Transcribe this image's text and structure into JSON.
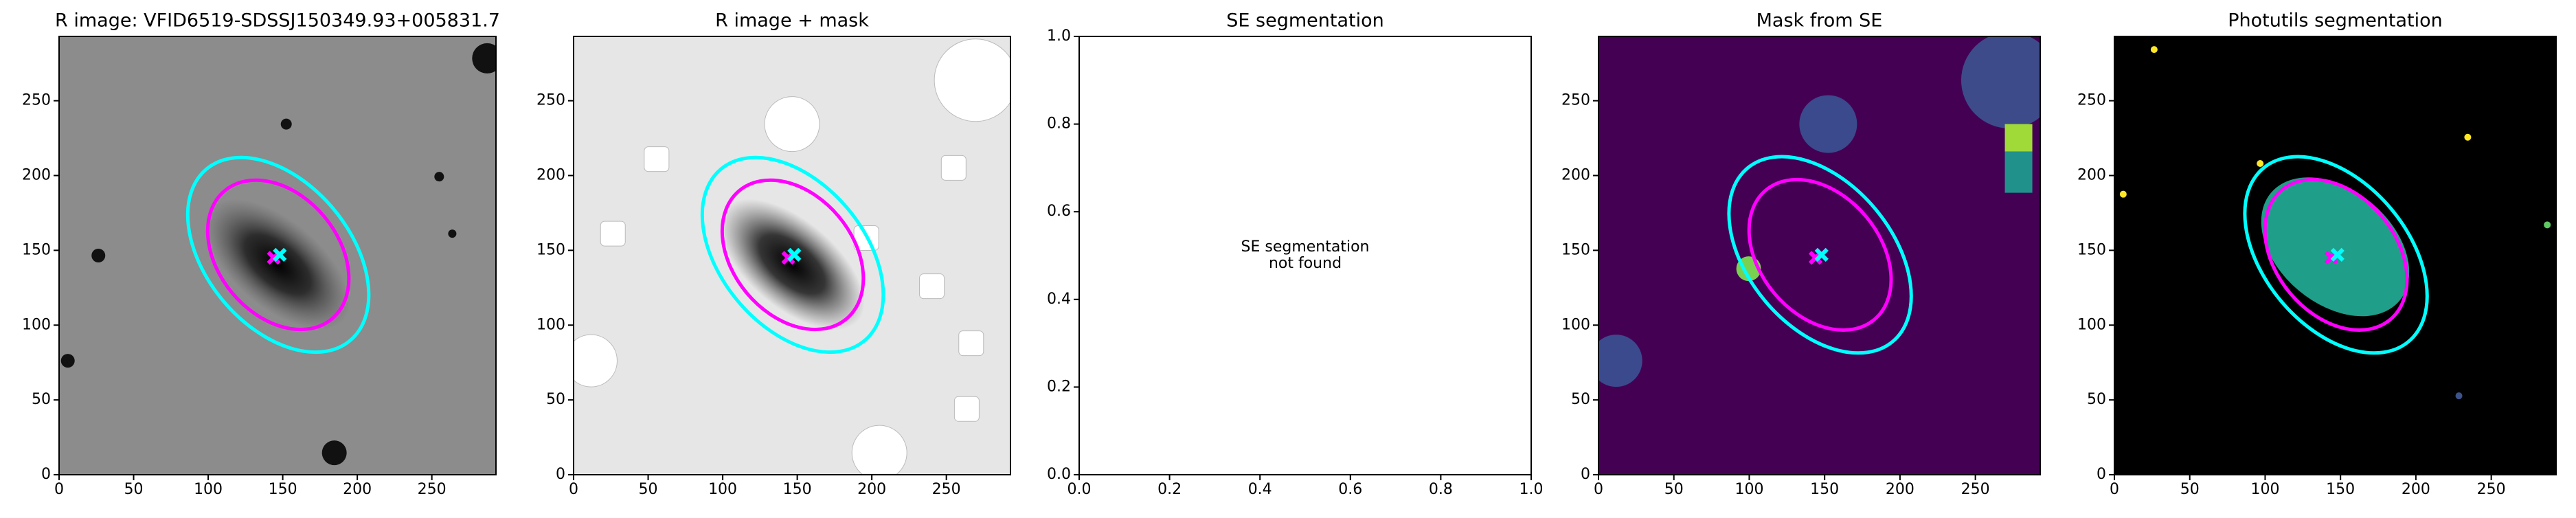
{
  "chart_data": [
    {
      "type": "image",
      "title": "R image: VFID6519-SDSSJ150349.93+005831.7",
      "background": "#8c8c8c",
      "xlim": [
        0,
        293
      ],
      "ylim": [
        0,
        293
      ],
      "xticks": [
        0,
        50,
        100,
        150,
        200,
        250
      ],
      "yticks": [
        0,
        50,
        100,
        150,
        200,
        250
      ],
      "ellipses": [
        {
          "x": 147,
          "y": 147,
          "width": 150,
          "height": 96,
          "angle": -50,
          "color": "#00ffff"
        },
        {
          "x": 147,
          "y": 147,
          "width": 112,
          "height": 80,
          "angle": -50,
          "color": "#ff00ff"
        }
      ],
      "markers": [
        {
          "x": 144,
          "y": 145,
          "color": "#ff00ff"
        },
        {
          "x": 148,
          "y": 147,
          "color": "#00ffff"
        }
      ]
    },
    {
      "type": "image",
      "title": "R image + mask",
      "background": "#e6e6e6",
      "xlim": [
        0,
        293
      ],
      "ylim": [
        0,
        293
      ],
      "xticks": [
        0,
        50,
        100,
        150,
        200,
        250
      ],
      "yticks": [
        0,
        50,
        100,
        150,
        200,
        250
      ],
      "ellipses": [
        {
          "x": 147,
          "y": 147,
          "width": 150,
          "height": 96,
          "angle": -50,
          "color": "#00ffff"
        },
        {
          "x": 147,
          "y": 147,
          "width": 112,
          "height": 80,
          "angle": -50,
          "color": "#ff00ff"
        }
      ],
      "markers": [
        {
          "x": 144,
          "y": 145,
          "color": "#ff00ff"
        },
        {
          "x": 148,
          "y": 147,
          "color": "#00ffff"
        }
      ]
    },
    {
      "type": "empty",
      "title": "SE segmentation",
      "background": "#ffffff",
      "xlim": [
        0,
        1
      ],
      "ylim": [
        0,
        1
      ],
      "xticks": [
        {
          "value": 0,
          "label": "0.0"
        },
        {
          "value": 0.2,
          "label": "0.2"
        },
        {
          "value": 0.4,
          "label": "0.4"
        },
        {
          "value": 0.6,
          "label": "0.6"
        },
        {
          "value": 0.8,
          "label": "0.8"
        },
        {
          "value": 1,
          "label": "1.0"
        }
      ],
      "yticks": [
        {
          "value": 0,
          "label": "0.0"
        },
        {
          "value": 0.2,
          "label": "0.2"
        },
        {
          "value": 0.4,
          "label": "0.4"
        },
        {
          "value": 0.6,
          "label": "0.6"
        },
        {
          "value": 0.8,
          "label": "0.8"
        },
        {
          "value": 1,
          "label": "1.0"
        }
      ],
      "annotation": [
        "SE segmentation",
        "not found"
      ]
    },
    {
      "type": "image",
      "title": "Mask from SE",
      "background": "#440154",
      "xlim": [
        0,
        293
      ],
      "ylim": [
        0,
        293
      ],
      "xticks": [
        0,
        50,
        100,
        150,
        200,
        250
      ],
      "yticks": [
        0,
        50,
        100,
        150,
        200,
        250
      ],
      "ellipses": [
        {
          "x": 147,
          "y": 147,
          "width": 150,
          "height": 96,
          "angle": -50,
          "color": "#00ffff"
        },
        {
          "x": 147,
          "y": 147,
          "width": 112,
          "height": 80,
          "angle": -50,
          "color": "#ff00ff"
        }
      ],
      "markers": [
        {
          "x": 144,
          "y": 145,
          "color": "#ff00ff"
        },
        {
          "x": 148,
          "y": 147,
          "color": "#00ffff"
        }
      ]
    },
    {
      "type": "image",
      "title": "Photutils segmentation",
      "background": "#000000",
      "xlim": [
        0,
        293
      ],
      "ylim": [
        0,
        293
      ],
      "xticks": [
        0,
        50,
        100,
        150,
        200,
        250
      ],
      "yticks": [
        0,
        50,
        100,
        150,
        200,
        250
      ],
      "ellipses": [
        {
          "x": 147,
          "y": 147,
          "width": 150,
          "height": 96,
          "angle": -50,
          "color": "#00ffff"
        },
        {
          "x": 147,
          "y": 147,
          "width": 112,
          "height": 80,
          "angle": -50,
          "color": "#ff00ff"
        }
      ],
      "markers": [
        {
          "x": 144,
          "y": 145,
          "color": "#ff00ff"
        },
        {
          "x": 148,
          "y": 147,
          "color": "#00ffff"
        }
      ]
    }
  ]
}
